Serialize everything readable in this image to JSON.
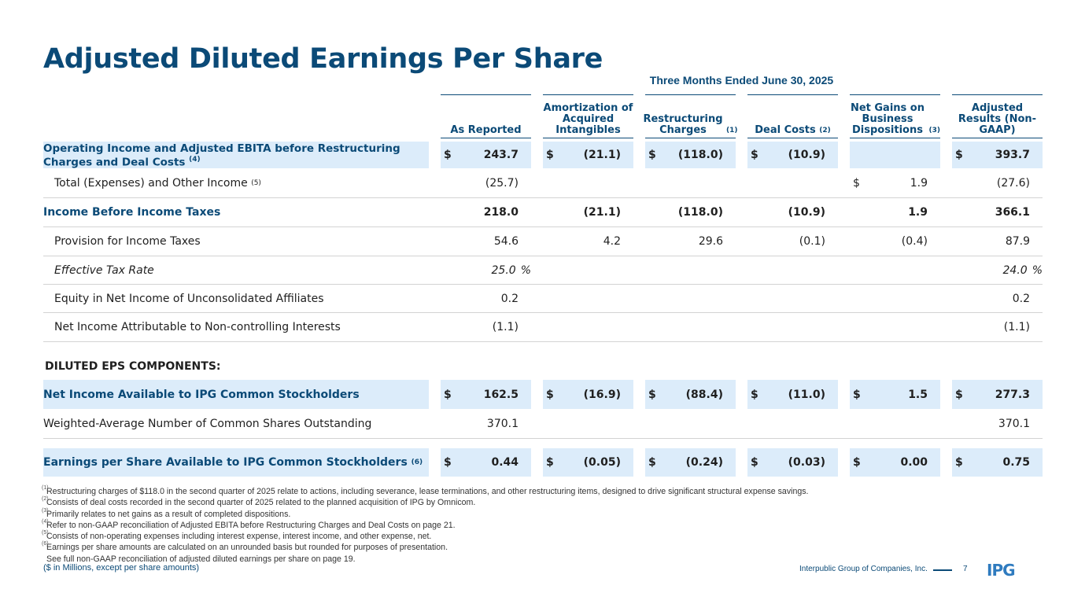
{
  "title": "Adjusted Diluted Earnings Per Share",
  "period": "Three Months Ended June 30, 2025",
  "columns": [
    {
      "label": "As Reported",
      "sup": ""
    },
    {
      "label": "Amortization of Acquired Intangibles",
      "sup": ""
    },
    {
      "label": "Restructuring Charges",
      "sup": "(1)"
    },
    {
      "label": "Deal Costs",
      "sup": "(2)"
    },
    {
      "label": "Net Gains on Business Dispositions",
      "sup": "(3)"
    },
    {
      "label": "Adjusted Results (Non-GAAP)",
      "sup": ""
    }
  ],
  "rows": {
    "op_income": {
      "label": "Operating Income and Adjusted EBITA before Restructuring Charges and Deal Costs",
      "sup": "(4)",
      "values": [
        "243.7",
        "(21.1)",
        "(118.0)",
        "(10.9)",
        "",
        "393.7"
      ],
      "dollar": [
        "$",
        "$",
        "$",
        "$",
        "",
        "$"
      ]
    },
    "total_exp": {
      "label": "Total (Expenses) and Other Income",
      "sup": "(5)",
      "values": [
        "(25.7)",
        "",
        "",
        "",
        "1.9",
        "(27.6)"
      ],
      "dollar": [
        "",
        "",
        "",
        "",
        "$",
        ""
      ]
    },
    "income_before": {
      "label": "Income Before Income Taxes",
      "values": [
        "218.0",
        "(21.1)",
        "(118.0)",
        "(10.9)",
        "1.9",
        "366.1"
      ]
    },
    "provision": {
      "label": "Provision for Income Taxes",
      "values": [
        "54.6",
        "4.2",
        "29.6",
        "(0.1)",
        "(0.4)",
        "87.9"
      ]
    },
    "eff_tax": {
      "label": "Effective Tax Rate",
      "values": [
        "25.0",
        "",
        "",
        "",
        "",
        "24.0"
      ],
      "pct": "%"
    },
    "equity": {
      "label": "Equity in Net Income of Unconsolidated Affiliates",
      "values": [
        "0.2",
        "",
        "",
        "",
        "",
        "0.2"
      ]
    },
    "nci": {
      "label": "Net Income Attributable to Non-controlling Interests",
      "values": [
        "(1.1)",
        "",
        "",
        "",
        "",
        "(1.1)"
      ]
    },
    "section": {
      "label": "DILUTED EPS COMPONENTS:"
    },
    "net_income": {
      "label": "Net Income Available to IPG Common Stockholders",
      "values": [
        "162.5",
        "(16.9)",
        "(88.4)",
        "(11.0)",
        "1.5",
        "277.3"
      ],
      "dollar": [
        "$",
        "$",
        "$",
        "$",
        "$",
        "$"
      ]
    },
    "shares": {
      "label": "Weighted-Average Number of Common Shares Outstanding",
      "values": [
        "370.1",
        "",
        "",
        "",
        "",
        "370.1"
      ]
    },
    "eps": {
      "label": "Earnings per Share Available to IPG Common Stockholders",
      "sup": "(6)",
      "values": [
        "0.44",
        "(0.05)",
        "(0.24)",
        "(0.03)",
        "0.00",
        "0.75"
      ],
      "dollar": [
        "$",
        "$",
        "$",
        "$",
        "$",
        "$"
      ]
    }
  },
  "footnotes": [
    {
      "n": "(1)",
      "text": "Restructuring charges of $118.0 in the second quarter of 2025 relate to actions, including severance, lease terminations, and other restructuring items, designed to drive significant structural expense savings."
    },
    {
      "n": "(2)",
      "text": "Consists of deal costs recorded in the second quarter of 2025 related to the planned acquisition of IPG by Omnicom."
    },
    {
      "n": "(3)",
      "text": "Primarily relates to net gains as a result of completed dispositions."
    },
    {
      "n": "(4)",
      "text": "Refer to non-GAAP reconciliation of Adjusted EBITA before Restructuring Charges and Deal Costs on page 21."
    },
    {
      "n": "(5)",
      "text": "Consists of non-operating expenses including interest expense, interest income, and other expense, net."
    },
    {
      "n": "(6)",
      "text": "Earnings per share amounts are calculated on an unrounded basis but rounded for purposes of presentation."
    },
    {
      "n": "",
      "text": "See full non-GAAP reconciliation of adjusted diluted earnings per share on page 19."
    }
  ],
  "units_note": "($ in Millions, except per share amounts)",
  "company": "Interpublic Group of Companies, Inc.",
  "page_number": "7",
  "logo_text": "IPG",
  "colors": {
    "brand": "#0b4a77",
    "shade": "#dcecfa",
    "rule": "#d3d3d3"
  }
}
